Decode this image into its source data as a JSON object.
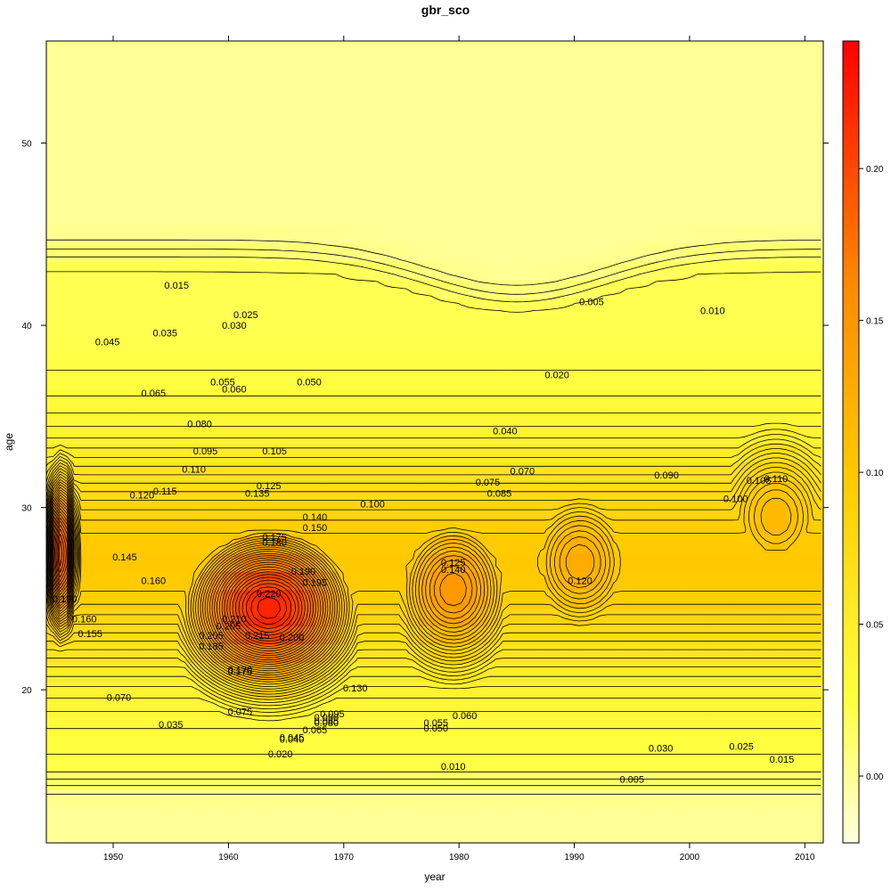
{
  "chart_data": {
    "type": "heatmap",
    "title": "gbr_sco",
    "xlabel": "year",
    "ylabel": "age",
    "xlim": [
      1944.2,
      2011.6
    ],
    "ylim": [
      11.6,
      55.6
    ],
    "x_ticks": [
      1950,
      1960,
      1970,
      1980,
      1990,
      2000,
      2010
    ],
    "y_ticks": [
      20,
      30,
      40,
      50
    ],
    "colorbar": {
      "range": [
        -0.022,
        0.242
      ],
      "ticks": [
        0.0,
        0.05,
        0.1,
        0.15,
        0.2
      ],
      "tick_labels": [
        "0.00",
        "0.05",
        "0.10",
        "0.15",
        "0.20"
      ],
      "colors": [
        "#ffffe0",
        "#ffff33",
        "#ffcc00",
        "#ff9900",
        "#ff5500",
        "#ff0000"
      ]
    },
    "contour_interval": 0.005,
    "contour_labels": [
      {
        "text": "0.015",
        "year": 1955.5,
        "age": 42.2
      },
      {
        "text": "0.025",
        "year": 1961.5,
        "age": 40.6
      },
      {
        "text": "0.030",
        "year": 1960.5,
        "age": 40.0
      },
      {
        "text": "0.035",
        "year": 1954.5,
        "age": 39.6
      },
      {
        "text": "0.045",
        "year": 1949.5,
        "age": 39.1
      },
      {
        "text": "0.055",
        "year": 1959.5,
        "age": 36.9
      },
      {
        "text": "0.060",
        "year": 1960.5,
        "age": 36.5
      },
      {
        "text": "0.065",
        "year": 1953.5,
        "age": 36.3
      },
      {
        "text": "0.050",
        "year": 1967.0,
        "age": 36.9
      },
      {
        "text": "0.080",
        "year": 1957.5,
        "age": 34.6
      },
      {
        "text": "0.095",
        "year": 1958.0,
        "age": 33.1
      },
      {
        "text": "0.105",
        "year": 1964.0,
        "age": 33.1
      },
      {
        "text": "0.110",
        "year": 1957.0,
        "age": 32.1
      },
      {
        "text": "0.125",
        "year": 1963.5,
        "age": 31.2
      },
      {
        "text": "0.135",
        "year": 1962.5,
        "age": 30.8
      },
      {
        "text": "0.115",
        "year": 1954.5,
        "age": 30.9
      },
      {
        "text": "0.120",
        "year": 1952.5,
        "age": 30.7
      },
      {
        "text": "0.140",
        "year": 1967.5,
        "age": 29.5
      },
      {
        "text": "0.150",
        "year": 1967.5,
        "age": 28.9
      },
      {
        "text": "0.175",
        "year": 1964.0,
        "age": 28.4
      },
      {
        "text": "0.180",
        "year": 1964.0,
        "age": 28.1
      },
      {
        "text": "0.145",
        "year": 1951.0,
        "age": 27.3
      },
      {
        "text": "0.190",
        "year": 1966.5,
        "age": 26.5
      },
      {
        "text": "0.195",
        "year": 1967.5,
        "age": 25.9
      },
      {
        "text": "0.160",
        "year": 1953.5,
        "age": 26.0
      },
      {
        "text": "0.220",
        "year": 1963.5,
        "age": 25.3
      },
      {
        "text": "0.210",
        "year": 1960.5,
        "age": 23.9
      },
      {
        "text": "0.205",
        "year": 1960.0,
        "age": 23.5
      },
      {
        "text": "0.215",
        "year": 1962.5,
        "age": 23.0
      },
      {
        "text": "0.200",
        "year": 1965.5,
        "age": 22.9
      },
      {
        "text": "0.205",
        "year": 1958.5,
        "age": 23.0
      },
      {
        "text": "0.185",
        "year": 1958.5,
        "age": 22.4
      },
      {
        "text": "0.155",
        "year": 1948.0,
        "age": 23.1
      },
      {
        "text": "0.170",
        "year": 1961.0,
        "age": 21.1
      },
      {
        "text": "0.175",
        "year": 1961.0,
        "age": 21.0
      },
      {
        "text": "0.130",
        "year": 1971.0,
        "age": 20.1
      },
      {
        "text": "0.070",
        "year": 1950.5,
        "age": 19.6
      },
      {
        "text": "0.075",
        "year": 1961.0,
        "age": 18.8
      },
      {
        "text": "0.095",
        "year": 1969.0,
        "age": 18.7
      },
      {
        "text": "0.090",
        "year": 1968.5,
        "age": 18.5
      },
      {
        "text": "0.085",
        "year": 1968.5,
        "age": 18.3
      },
      {
        "text": "0.080",
        "year": 1968.5,
        "age": 18.2
      },
      {
        "text": "0.065",
        "year": 1967.5,
        "age": 17.8
      },
      {
        "text": "0.035",
        "year": 1955.0,
        "age": 18.1
      },
      {
        "text": "0.045",
        "year": 1965.5,
        "age": 17.4
      },
      {
        "text": "0.040",
        "year": 1965.5,
        "age": 17.3
      },
      {
        "text": "0.020",
        "year": 1964.5,
        "age": 16.5
      },
      {
        "text": "0.055",
        "year": 1978.0,
        "age": 18.2
      },
      {
        "text": "0.050",
        "year": 1978.0,
        "age": 17.9
      },
      {
        "text": "0.060",
        "year": 1980.5,
        "age": 18.6
      },
      {
        "text": "0.010",
        "year": 1979.5,
        "age": 15.8
      },
      {
        "text": "0.100",
        "year": 1972.5,
        "age": 30.2
      },
      {
        "text": "0.075",
        "year": 1982.5,
        "age": 31.4
      },
      {
        "text": "0.085",
        "year": 1983.5,
        "age": 30.8
      },
      {
        "text": "0.070",
        "year": 1985.5,
        "age": 32.0
      },
      {
        "text": "0.040",
        "year": 1984.0,
        "age": 34.2
      },
      {
        "text": "0.020",
        "year": 1988.5,
        "age": 37.3
      },
      {
        "text": "0.005",
        "year": 1991.5,
        "age": 41.3
      },
      {
        "text": "0.010",
        "year": 2002.0,
        "age": 40.8
      },
      {
        "text": "0.125",
        "year": 1979.5,
        "age": 27.0
      },
      {
        "text": "0.140",
        "year": 1979.5,
        "age": 26.6
      },
      {
        "text": "0.120",
        "year": 1990.5,
        "age": 26.0
      },
      {
        "text": "0.090",
        "year": 1998.0,
        "age": 31.8
      },
      {
        "text": "0.100",
        "year": 2004.0,
        "age": 30.5
      },
      {
        "text": "0.105",
        "year": 2006.0,
        "age": 31.5
      },
      {
        "text": "0.110",
        "year": 2007.5,
        "age": 31.6
      },
      {
        "text": "0.030",
        "year": 1997.5,
        "age": 16.8
      },
      {
        "text": "0.025",
        "year": 2004.5,
        "age": 16.9
      },
      {
        "text": "0.015",
        "year": 2008.0,
        "age": 16.2
      },
      {
        "text": "0.005",
        "year": 1995.0,
        "age": 15.1
      },
      {
        "text": "0.190",
        "year": 1945.8,
        "age": 25.0
      },
      {
        "text": "0.160",
        "year": 1947.5,
        "age": 23.9
      }
    ],
    "peaks": [
      {
        "year": 1963.5,
        "age": 24.5,
        "value": 0.224
      },
      {
        "year": 1945.5,
        "age": 27.5,
        "value": 0.205
      },
      {
        "year": 1979.5,
        "age": 25.5,
        "value": 0.15
      },
      {
        "year": 1990.5,
        "age": 27.0,
        "value": 0.13
      },
      {
        "year": 2007.5,
        "age": 29.5,
        "value": 0.115
      }
    ]
  }
}
